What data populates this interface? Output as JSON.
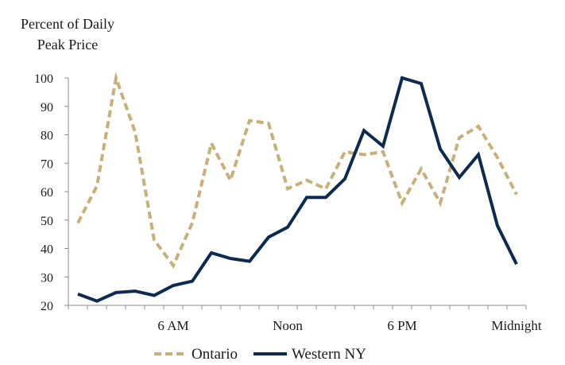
{
  "chart_data": {
    "type": "line",
    "ylabel_lines": [
      "Percent of Daily",
      "Peak Price"
    ],
    "ylim": [
      20,
      100
    ],
    "yticks": [
      20,
      30,
      40,
      50,
      60,
      70,
      80,
      90,
      100
    ],
    "x_tick_labels": [
      {
        "hour": 6,
        "label": "6 AM"
      },
      {
        "hour": 12,
        "label": "Noon"
      },
      {
        "hour": 18,
        "label": "6 PM"
      },
      {
        "hour": 24,
        "label": "Midnight"
      }
    ],
    "x": [
      1,
      2,
      3,
      4,
      5,
      6,
      7,
      8,
      9,
      10,
      11,
      12,
      13,
      14,
      15,
      16,
      17,
      18,
      19,
      20,
      21,
      22,
      23,
      24
    ],
    "series": [
      {
        "name": "Ontario",
        "color": "#c8b07a",
        "style": "dashed",
        "values": [
          49,
          62,
          100,
          81,
          43,
          34,
          49,
          77,
          64,
          85,
          84,
          61,
          64,
          61,
          74,
          73,
          74,
          56,
          68,
          56,
          79,
          83,
          72,
          59
        ]
      },
      {
        "name": "Western NY",
        "color": "#0d2a4f",
        "style": "solid",
        "values": [
          24,
          21.5,
          24.5,
          25,
          23.5,
          27,
          28.5,
          38.5,
          36.5,
          35.5,
          44,
          47.5,
          58,
          58,
          64.5,
          81.5,
          76,
          100,
          98,
          75,
          65,
          73,
          48,
          34.5
        ]
      }
    ],
    "legend_position": "bottom-center",
    "grid": false
  }
}
